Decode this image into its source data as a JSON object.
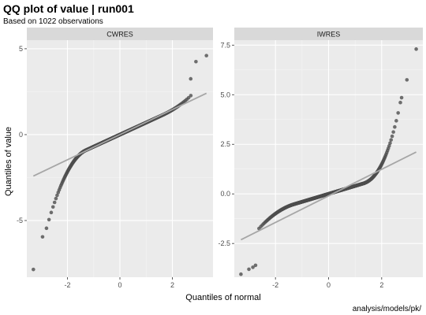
{
  "chart_data": {
    "type": "scatter",
    "title": "QQ plot of value | run001",
    "subtitle": "Based on 1022 observations",
    "xlabel": "Quantiles of normal",
    "ylabel": "Quantiles of value",
    "caption": "analysis/models/pk/",
    "grid": true,
    "colors": {
      "panel_bg": "#ebebeb",
      "strip_bg": "#d9d9d9",
      "grid_major": "#ffffff",
      "grid_minor": "#f5f5f5",
      "point": "#4d4d4d",
      "ref_line": "#a6a6a6"
    },
    "panels": [
      {
        "name": "CWRES",
        "xlim": [
          -3.55,
          3.55
        ],
        "ylim": [
          -8.3,
          5.5
        ],
        "x_ticks": [
          -2,
          0,
          2
        ],
        "y_ticks": [
          -5,
          0,
          5
        ],
        "y_tick_labels": [
          "-5",
          "0",
          "5"
        ],
        "ref_line": {
          "intercept": 0.0,
          "slope": 0.73
        },
        "shape": {
          "slope": 0.7,
          "lower_tail": 1.55,
          "upper_tail": 0.2,
          "knee_low": -1.3,
          "knee_high": 1.6
        },
        "extreme_points": [
          {
            "x": -3.3,
            "y": -7.85
          },
          {
            "x": -2.95,
            "y": -5.95
          },
          {
            "x": -2.8,
            "y": -5.45
          },
          {
            "x": 2.7,
            "y": 3.25
          },
          {
            "x": 2.9,
            "y": 4.25
          },
          {
            "x": 3.3,
            "y": 4.6
          }
        ]
      },
      {
        "name": "IWRES",
        "xlim": [
          -3.55,
          3.55
        ],
        "ylim": [
          -4.2,
          7.75
        ],
        "x_ticks": [
          -2,
          0,
          2
        ],
        "y_ticks": [
          -2.5,
          0,
          2.5,
          5,
          7.5
        ],
        "y_tick_labels": [
          "-2.5",
          "0.0",
          "2.5",
          "5.0",
          "7.5"
        ],
        "ref_line": {
          "intercept": -0.1,
          "slope": 0.67
        },
        "shape": {
          "slope": 0.4,
          "lower_tail": 0.4,
          "upper_tail": 1.05,
          "knee_low": -1.3,
          "knee_high": 1.3
        },
        "extreme_points": [
          {
            "x": -3.3,
            "y": -4.05
          },
          {
            "x": -3.0,
            "y": -3.8
          },
          {
            "x": -2.85,
            "y": -3.7
          },
          {
            "x": -2.75,
            "y": -3.6
          },
          {
            "x": 2.75,
            "y": 4.85
          },
          {
            "x": 2.95,
            "y": 5.75
          },
          {
            "x": 3.3,
            "y": 7.3
          }
        ]
      }
    ]
  }
}
